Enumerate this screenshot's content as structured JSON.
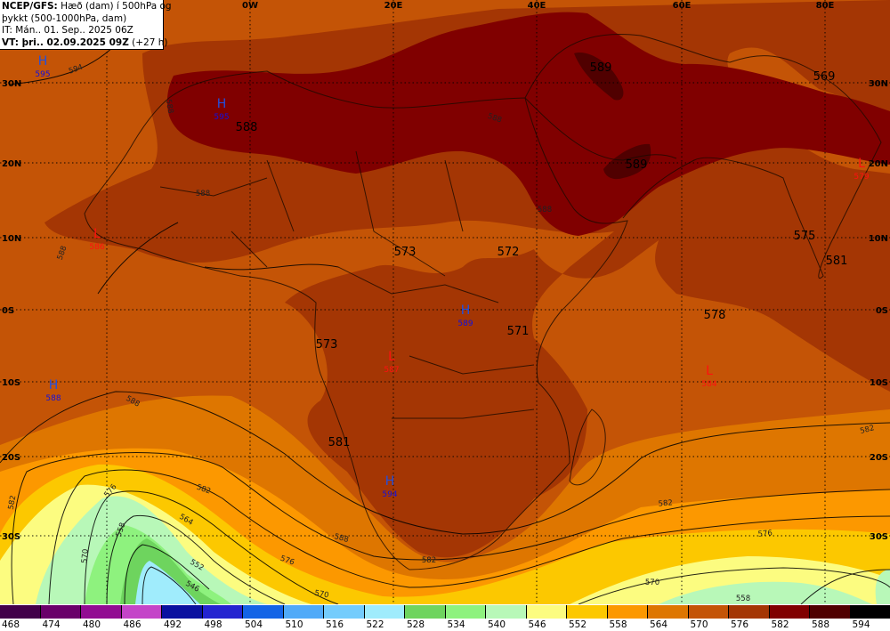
{
  "title": {
    "line1_bold": "NCEP/GFS:",
    "line1_rest": " Hæð (dam) í 500hPa og",
    "line2": "þykkt (500-1000hPa, dam)",
    "line3": "IT: Mán.. 01. Sep.. 2025 06Z",
    "line4_bold": "VT: þri.. 02.09.2025 09Z",
    "line4_rest": " (+27 h)"
  },
  "lon_labels": [
    "0W",
    "20E",
    "40E",
    "60E",
    "80E"
  ],
  "lat_labels_left": [
    "30N",
    "20N",
    "10N",
    "0S",
    "10S",
    "20S",
    "30S"
  ],
  "lat_labels_right": [
    "30N",
    "20N",
    "10N",
    "0S",
    "10S",
    "20S",
    "30S"
  ],
  "highs": [
    {
      "symbol": "H",
      "value": "595"
    },
    {
      "symbol": "H",
      "value": "595"
    },
    {
      "symbol": "H",
      "value": "589"
    },
    {
      "symbol": "H",
      "value": "588"
    },
    {
      "symbol": "H",
      "value": "594"
    }
  ],
  "lows": [
    {
      "symbol": "L",
      "value": "586"
    },
    {
      "symbol": "L",
      "value": "587"
    },
    {
      "symbol": "L",
      "value": "584"
    },
    {
      "symbol": "L",
      "value": "579"
    }
  ],
  "thickness_values": [
    "588",
    "589",
    "589",
    "569",
    "573",
    "572",
    "575",
    "581",
    "578",
    "571",
    "573",
    "581"
  ],
  "contour_labels": [
    "594",
    "588",
    "588",
    "588",
    "588",
    "588",
    "588",
    "582",
    "582",
    "582",
    "582",
    "576",
    "576",
    "576",
    "570",
    "570",
    "570",
    "564",
    "558",
    "558",
    "552",
    "546",
    "588",
    "582"
  ],
  "colors": {
    "c468": "#42004a",
    "c474": "#6a006a",
    "c480": "#920c92",
    "c486": "#c444c8",
    "c492": "#0a10a0",
    "c498": "#2424d0",
    "c504": "#1464e6",
    "c510": "#50aaf8",
    "c516": "#74ccfc",
    "c522": "#a0ecfc",
    "c528": "#6ed45e",
    "c534": "#8ef27e",
    "c540": "#b8f8b8",
    "c546": "#fcfc80",
    "c552": "#fcc800",
    "c558": "#fc9800",
    "c564": "#de7600",
    "c570": "#c45406",
    "c576": "#a43604",
    "c582": "#800000",
    "c588": "#500000",
    "c594": "#000000",
    "high": "#2050e0",
    "low": "#ff1010"
  },
  "legend": {
    "values": [
      "468",
      "474",
      "480",
      "486",
      "492",
      "498",
      "504",
      "510",
      "516",
      "522",
      "528",
      "534",
      "540",
      "546",
      "552",
      "558",
      "564",
      "570",
      "576",
      "582",
      "588",
      "594"
    ]
  }
}
